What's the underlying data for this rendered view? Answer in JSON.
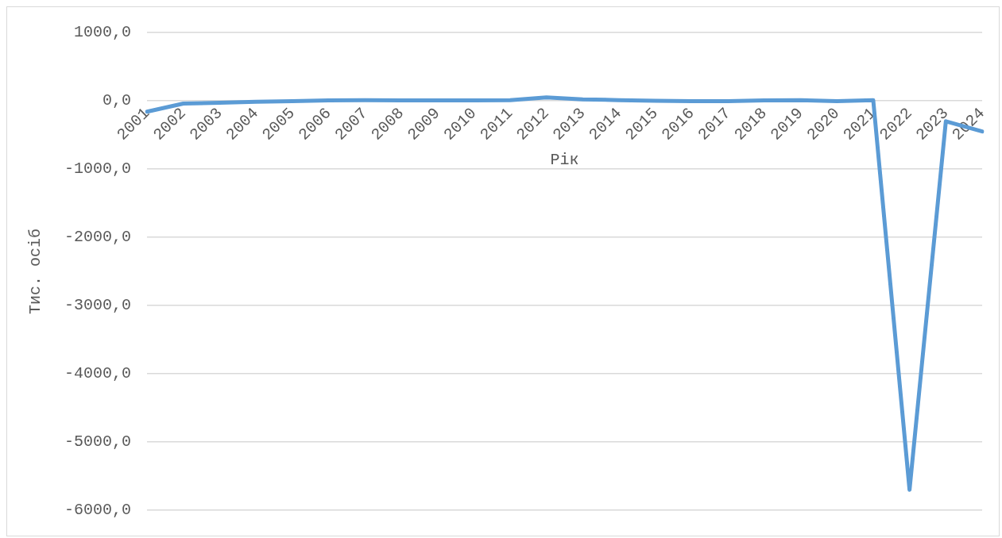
{
  "chart_data": {
    "type": "line",
    "xlabel": "Рік",
    "ylabel": "Тис. осіб",
    "categories": [
      "2001",
      "2002",
      "2003",
      "2004",
      "2005",
      "2006",
      "2007",
      "2008",
      "2009",
      "2010",
      "2011",
      "2012",
      "2013",
      "2014",
      "2015",
      "2016",
      "2017",
      "2018",
      "2019",
      "2020",
      "2021",
      "2022",
      "2023",
      "2024"
    ],
    "series": [
      {
        "color": "#5b9bd5",
        "values": [
          -160,
          -40,
          -30,
          -15,
          -5,
          5,
          10,
          5,
          5,
          5,
          10,
          50,
          20,
          10,
          0,
          -5,
          -5,
          5,
          10,
          -5,
          10,
          -5700,
          -300,
          -450
        ]
      }
    ],
    "ylim": [
      -6000,
      1000
    ],
    "yticks": [
      {
        "value": -6000,
        "label": "-6000,0"
      },
      {
        "value": -5000,
        "label": "-5000,0"
      },
      {
        "value": -4000,
        "label": "-4000,0"
      },
      {
        "value": -3000,
        "label": "-3000,0"
      },
      {
        "value": -2000,
        "label": "-2000,0"
      },
      {
        "value": -1000,
        "label": "-1000,0"
      },
      {
        "value": 0,
        "label": "0,0"
      },
      {
        "value": 1000,
        "label": "1000,0"
      }
    ],
    "grid": "y",
    "legend": false,
    "marker": "none",
    "line_style": "solid"
  }
}
